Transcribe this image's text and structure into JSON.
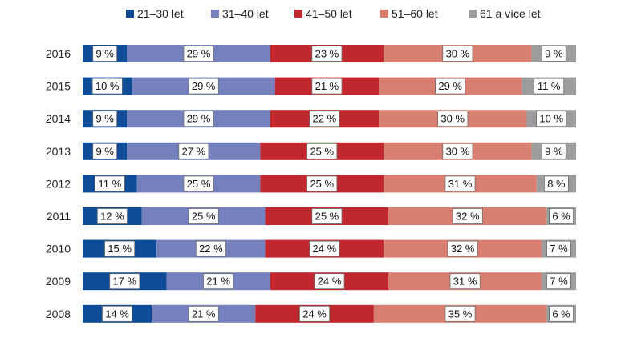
{
  "chart_data": {
    "type": "bar",
    "orientation": "horizontal-stacked-100",
    "legend_position": "top",
    "categories": [
      "2016",
      "2015",
      "2014",
      "2013",
      "2012",
      "2011",
      "2010",
      "2009",
      "2008"
    ],
    "series": [
      {
        "name": "21–30 let",
        "color": "#0f4c97",
        "values": [
          9,
          10,
          9,
          9,
          11,
          12,
          15,
          17,
          14
        ]
      },
      {
        "name": "31–40 let",
        "color": "#7481bc",
        "values": [
          29,
          29,
          29,
          27,
          25,
          25,
          22,
          21,
          21
        ]
      },
      {
        "name": "41–50 let",
        "color": "#c0272e",
        "values": [
          23,
          21,
          22,
          25,
          25,
          25,
          24,
          24,
          24
        ]
      },
      {
        "name": "51–60 let",
        "color": "#d97f72",
        "values": [
          30,
          29,
          30,
          30,
          31,
          32,
          32,
          31,
          35
        ]
      },
      {
        "name": "61 a více let",
        "color": "#9d9d9d",
        "values": [
          9,
          11,
          10,
          9,
          8,
          6,
          7,
          7,
          6
        ]
      }
    ],
    "label_suffix": " %"
  }
}
